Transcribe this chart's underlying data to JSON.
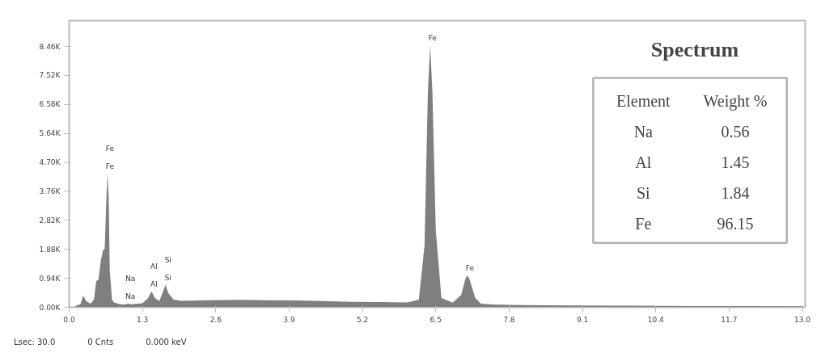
{
  "chart_data": {
    "type": "area",
    "title": "Spectrum",
    "x": [
      0.1,
      0.13,
      0.2,
      0.25,
      0.3,
      0.38,
      0.44,
      0.48,
      0.52,
      0.56,
      0.6,
      0.63,
      0.66,
      0.68,
      0.7,
      0.72,
      0.76,
      0.8,
      0.85,
      0.9,
      1.0,
      1.04,
      1.1,
      1.3,
      1.4,
      1.46,
      1.52,
      1.6,
      1.66,
      1.71,
      1.76,
      1.85,
      2.0,
      2.5,
      3.0,
      3.5,
      4.0,
      4.5,
      5.0,
      5.5,
      6.0,
      6.2,
      6.3,
      6.36,
      6.4,
      6.44,
      6.5,
      6.6,
      6.8,
      6.95,
      7.02,
      7.06,
      7.1,
      7.2,
      7.3,
      7.5,
      8.0,
      9.0,
      10.0,
      11.0,
      12.0,
      13.0
    ],
    "series": [
      {
        "color": "#7f7f7f",
        "values": [
          0,
          60,
          100,
          380,
          200,
          120,
          250,
          850,
          900,
          1500,
          1850,
          1900,
          3500,
          4340,
          3600,
          1200,
          250,
          150,
          130,
          100,
          90,
          120,
          100,
          130,
          300,
          520,
          300,
          200,
          500,
          730,
          450,
          250,
          210,
          230,
          240,
          230,
          220,
          200,
          180,
          170,
          160,
          250,
          2000,
          7000,
          8500,
          7000,
          2500,
          300,
          150,
          400,
          900,
          1040,
          900,
          300,
          120,
          90,
          70,
          60,
          50,
          40,
          40,
          30
        ]
      }
    ],
    "xlim": [
      0,
      13.05
    ],
    "xticks": [
      {
        "value": 0,
        "label": "0.0"
      },
      {
        "value": 1.3,
        "label": "1.3"
      },
      {
        "value": 2.6,
        "label": "2.6"
      },
      {
        "value": 3.9,
        "label": "3.9"
      },
      {
        "value": 5.2,
        "label": "5.2"
      },
      {
        "value": 6.5,
        "label": "6.5"
      },
      {
        "value": 7.8,
        "label": "7.8"
      },
      {
        "value": 9.1,
        "label": "9.1"
      },
      {
        "value": 10.4,
        "label": "10.4"
      },
      {
        "value": 11.7,
        "label": "11.7"
      },
      {
        "value": 13.0,
        "label": "13.0"
      }
    ],
    "ylim": [
      0,
      9300
    ],
    "yticks": [
      {
        "value": 0,
        "label": "0.00K"
      },
      {
        "value": 940,
        "label": "0.94K"
      },
      {
        "value": 1880,
        "label": "1.88K"
      },
      {
        "value": 2820,
        "label": "2.82K"
      },
      {
        "value": 3760,
        "label": "3.76K"
      },
      {
        "value": 4700,
        "label": "4.70K"
      },
      {
        "value": 5640,
        "label": "5.64K"
      },
      {
        "value": 6580,
        "label": "6.58K"
      },
      {
        "value": 7520,
        "label": "7.52K"
      },
      {
        "value": 8460,
        "label": "8.46K"
      }
    ],
    "grid": false,
    "annotations": [
      {
        "text": "Fe",
        "x": 0.68,
        "y": 4340
      },
      {
        "text": "Fe",
        "x": 0.68,
        "y": 4340
      },
      {
        "text": "Na",
        "x": 1.04,
        "y": 120
      },
      {
        "text": "Na",
        "x": 1.04,
        "y": 120
      },
      {
        "text": "Al",
        "x": 1.46,
        "y": 520
      },
      {
        "text": "Al",
        "x": 1.46,
        "y": 520
      },
      {
        "text": "Si",
        "x": 1.71,
        "y": 730
      },
      {
        "text": "Si",
        "x": 1.71,
        "y": 730
      },
      {
        "text": "Fe",
        "x": 6.4,
        "y": 8500
      },
      {
        "text": "Fe",
        "x": 7.06,
        "y": 1040
      },
      "Element",
      "Weight %",
      "Na",
      "0.56",
      "Al",
      "1.45",
      "Si",
      "1.84",
      "Fe",
      "96.15",
      "Lsec: 30.0",
      "0 Cnts",
      "0.000 keV"
    ]
  }
}
